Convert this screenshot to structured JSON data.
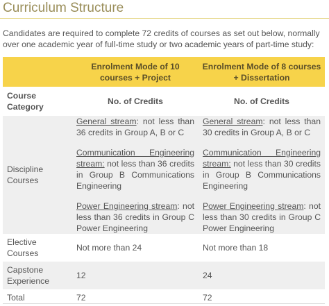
{
  "title": "Curriculum Structure",
  "intro": "Candidates are required to complete 72 credits of courses as set out below, normally over one academic year of full-time study or two academic years of part-time study:",
  "table": {
    "mode_headers": [
      "Enrolment Mode of 10 courses + Project",
      "Enrolment Mode of 8 courses + Dissertation"
    ],
    "category_header": "Course Category",
    "credits_header": "No. of Credits",
    "rows": [
      {
        "category": "Discipline Courses",
        "mode1": [
          {
            "stream": "General stream",
            "rest": ": not less than 36 credits in Group A, B or C"
          },
          {
            "stream": "Communication Engineering stream:",
            "rest": " not less than 36 credits in Group B Communications Engineering"
          },
          {
            "stream": "Power Engineering stream",
            "rest": ": not less than 36 credits in Group C Power Engineering"
          }
        ],
        "mode2": [
          {
            "stream": "General stream",
            "rest": ": not less than 30 credits in Group A, B or C"
          },
          {
            "stream": "Communication Engineering stream:",
            "rest": " not less than 30 credits in Group B Communications Engineering"
          },
          {
            "stream": "Power Engineering stream",
            "rest": ": not less than 30 credits in Group C Power Engineering"
          }
        ]
      },
      {
        "category": "Elective Courses",
        "mode1": "Not more than 24",
        "mode2": "Not more than 18"
      },
      {
        "category": "Capstone Experience",
        "mode1": "12",
        "mode2": "24"
      },
      {
        "category": "Total",
        "mode1": "72",
        "mode2": "72"
      }
    ]
  },
  "colors": {
    "header_yellow": "#f7d34a",
    "title_olive": "#9a8e5a",
    "row_grey": "#efefef"
  }
}
